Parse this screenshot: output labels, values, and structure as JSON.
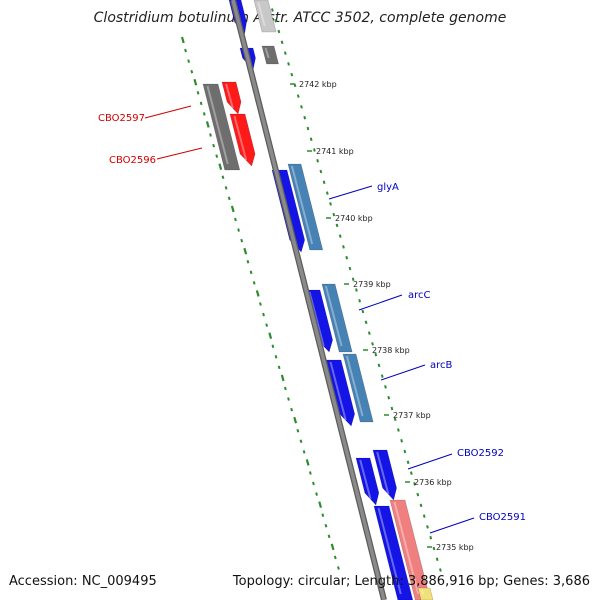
{
  "title": "Clostridium botulinum A str. ATCC 3502, complete genome",
  "footer": {
    "accession": "Accession: NC_009495",
    "summary": "Topology: circular; Length: 3,886,916 bp; Genes: 3,686"
  },
  "colors": {
    "backbone": "#8a8a8a",
    "tick": "#2e8b2e",
    "cds_blue": "#1414e6",
    "cds_steel": "#4682b4",
    "cds_gray": "#6e6e6e",
    "cds_red": "#ff1a1a",
    "cds_pink": "#f08080",
    "cds_yellow": "#f2e07a",
    "cds_lightgray": "#c8c8c8",
    "label_red": "#d00000",
    "label_blue": "#0000c0"
  },
  "kbp_labels": [
    "2742 kbp",
    "2741 kbp",
    "2740 kbp",
    "2739 kbp",
    "2738 kbp",
    "2737 kbp",
    "2736 kbp",
    "2735 kbp"
  ],
  "gene_labels": [
    {
      "name": "CBO2597",
      "color": "label_red"
    },
    {
      "name": "CBO2596",
      "color": "label_red"
    },
    {
      "name": "glyA",
      "color": "label_blue"
    },
    {
      "name": "arcC",
      "color": "label_blue"
    },
    {
      "name": "arcB",
      "color": "label_blue"
    },
    {
      "name": "CBO2592",
      "color": "label_blue"
    },
    {
      "name": "CBO2591",
      "color": "label_blue"
    }
  ]
}
